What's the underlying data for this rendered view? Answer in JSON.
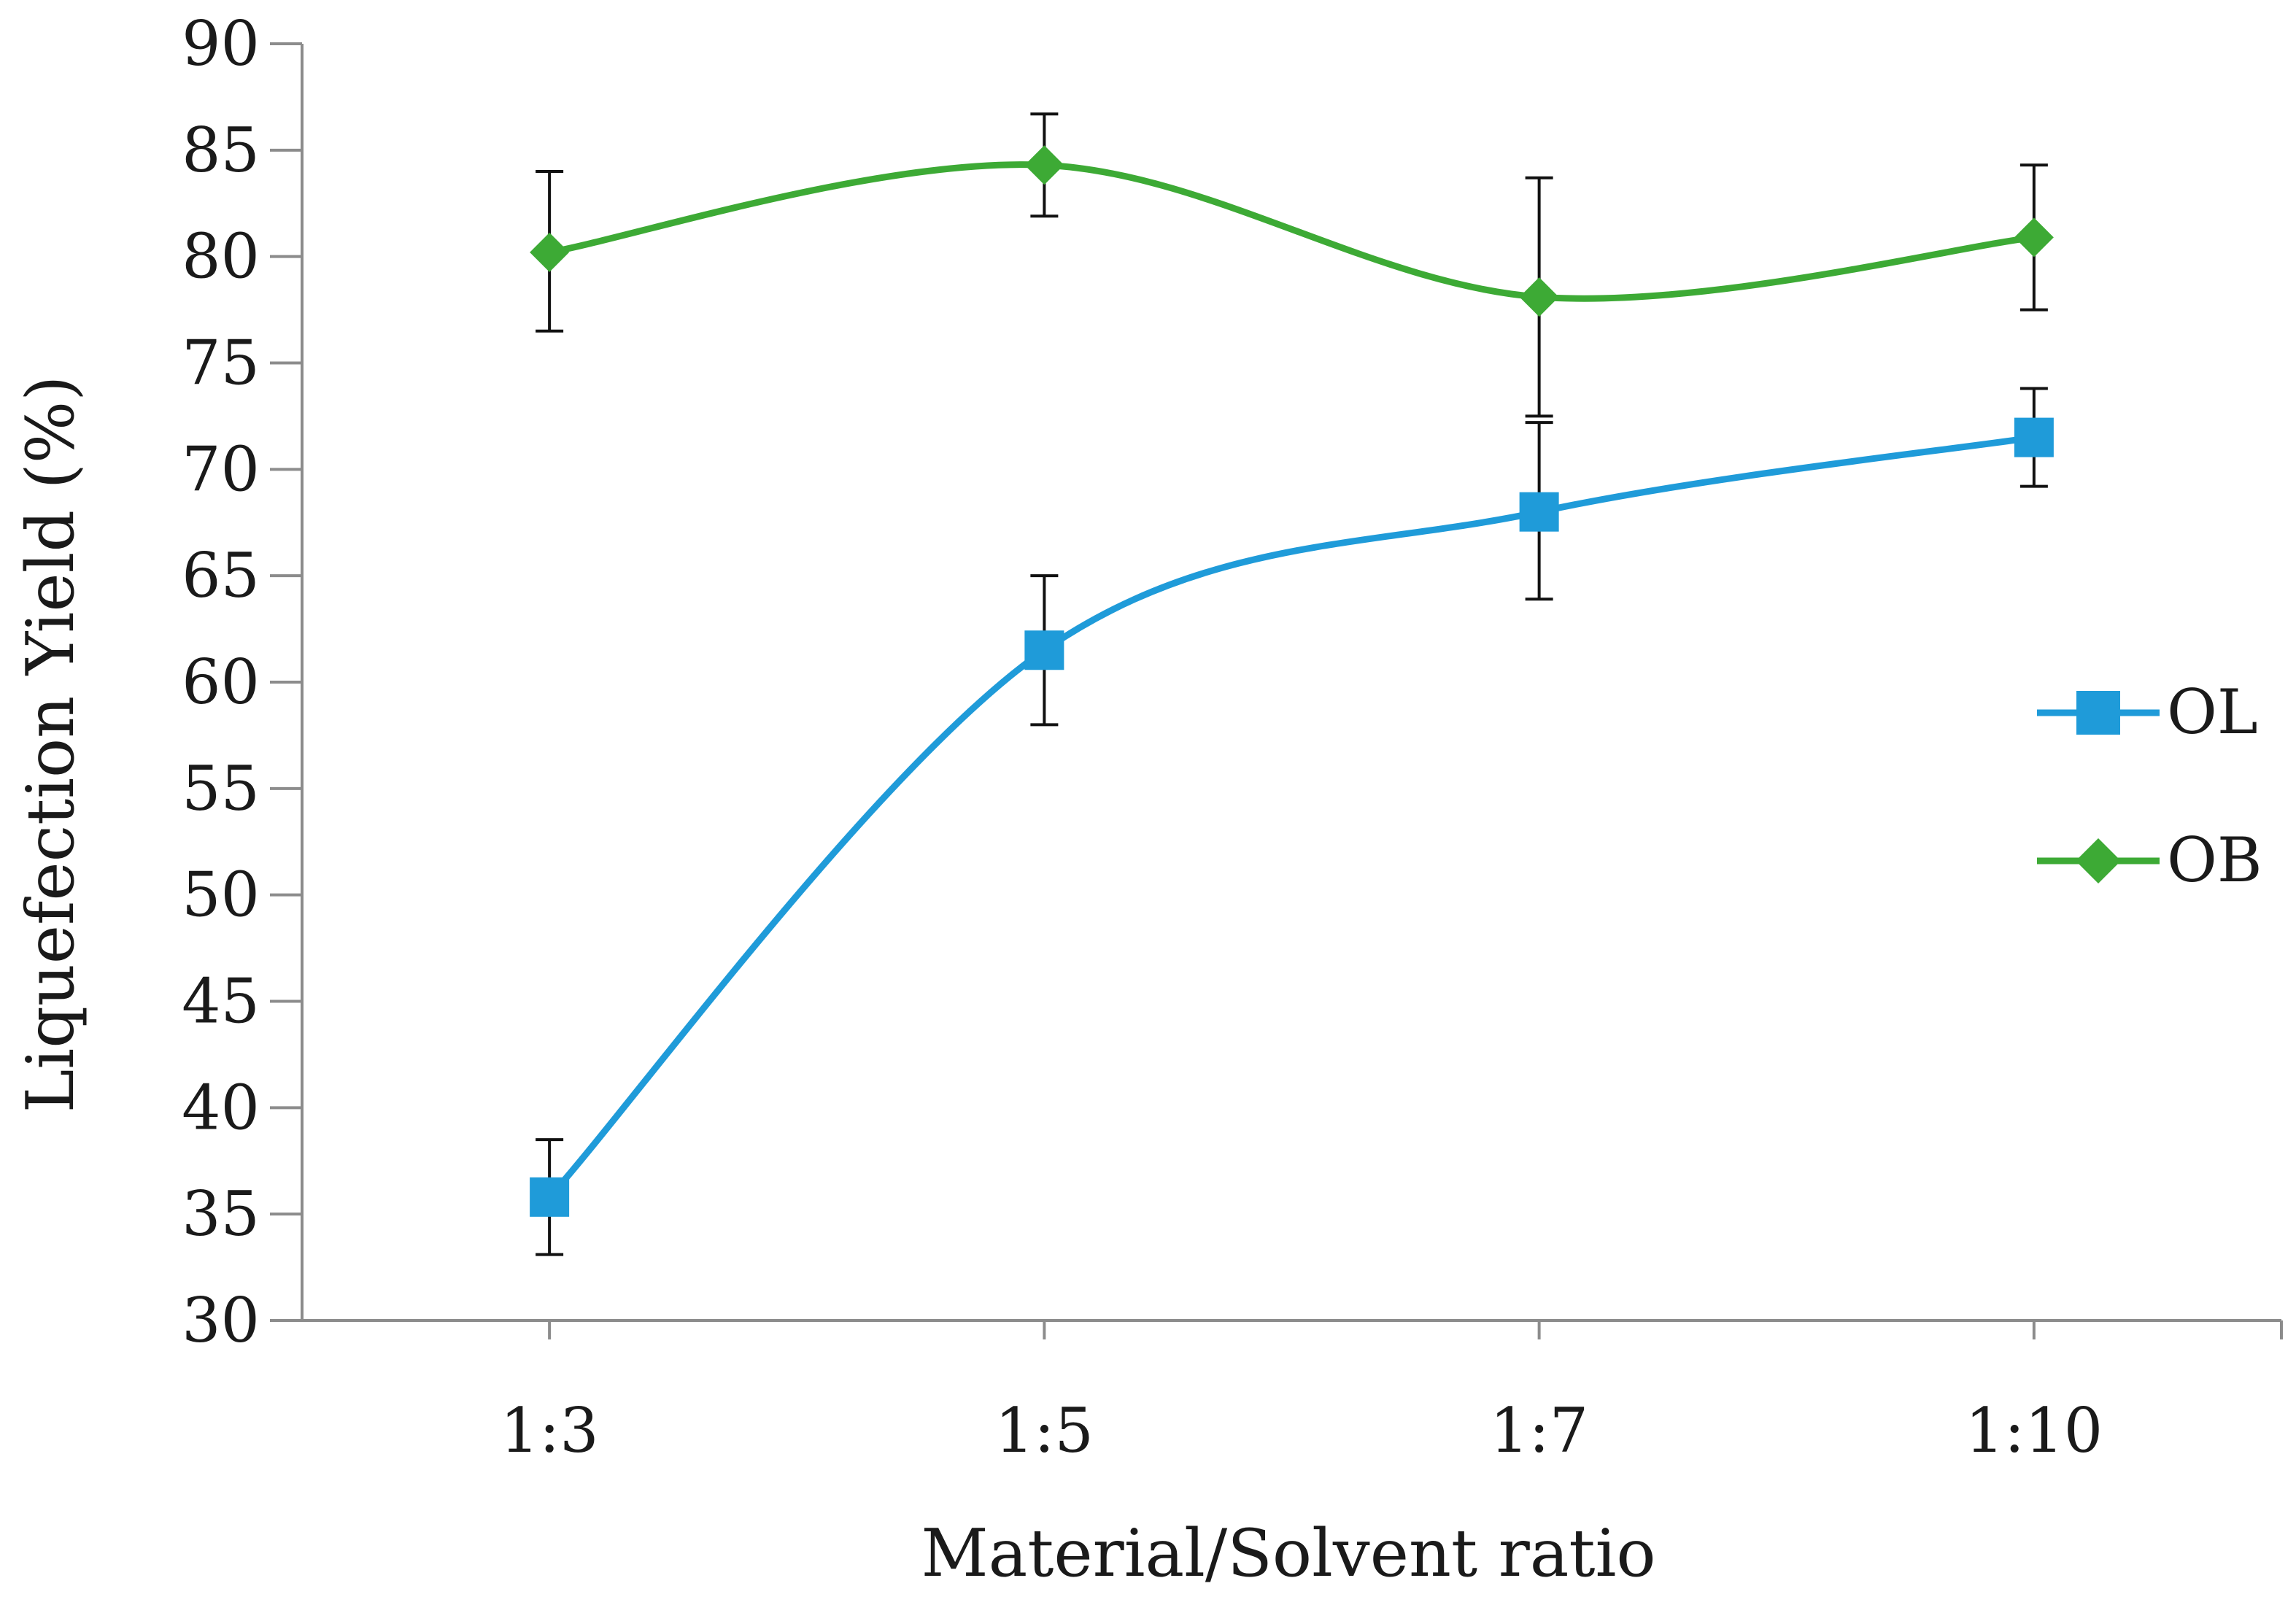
{
  "chart_data": {
    "type": "line",
    "xlabel": "Material/Solvent ratio",
    "ylabel": "Liquefection Yield (%)",
    "ylim": [
      30,
      90
    ],
    "yticks": [
      30,
      35,
      40,
      45,
      50,
      55,
      60,
      65,
      70,
      75,
      80,
      85,
      90
    ],
    "categories": [
      "1:3",
      "1:5",
      "1:7",
      "1:10"
    ],
    "legend_position": "right",
    "series": [
      {
        "name": "OL",
        "marker": "square",
        "color": "#1f9bd9",
        "values": [
          35.8,
          61.5,
          68.0,
          71.5
        ],
        "err_high": [
          38.5,
          65.0,
          72.2,
          73.8
        ],
        "err_low": [
          33.1,
          58.0,
          63.9,
          69.2
        ]
      },
      {
        "name": "OB",
        "marker": "diamond",
        "color": "#3daa35",
        "values": [
          80.2,
          84.3,
          78.1,
          80.9
        ],
        "err_high": [
          84.0,
          86.7,
          83.7,
          84.3
        ],
        "err_low": [
          76.5,
          81.9,
          72.5,
          77.5
        ]
      }
    ]
  }
}
